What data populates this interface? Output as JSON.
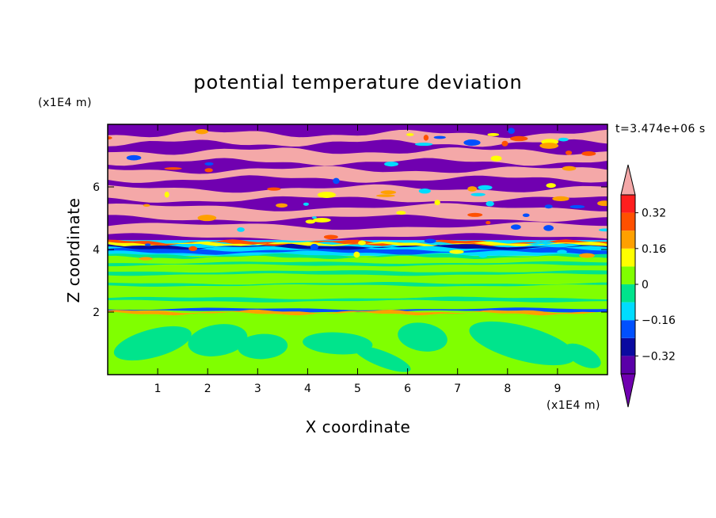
{
  "chart_data": {
    "type": "heatmap",
    "title": "potential temperature deviation",
    "xlabel": "X coordinate",
    "ylabel": "Z coordinate",
    "x_unit": "(x1E4 m)",
    "y_unit": "(x1E4 m)",
    "time_label": "t=3.474e+06 s",
    "xlim": [
      0,
      10
    ],
    "ylim": [
      0,
      8
    ],
    "x_ticks": [
      1,
      2,
      3,
      4,
      5,
      6,
      7,
      8,
      9
    ],
    "y_ticks": [
      2,
      4,
      6
    ],
    "x_tick_labels": [
      "1",
      "2",
      "3",
      "4",
      "5",
      "6",
      "7",
      "8",
      "9"
    ],
    "y_tick_labels": [
      "2",
      "4",
      "6"
    ],
    "colorbar": {
      "levels": [
        -0.4,
        -0.32,
        -0.24,
        -0.16,
        -0.08,
        0,
        0.08,
        0.16,
        0.24,
        0.32,
        0.4
      ],
      "colors": [
        "#5a00a8",
        "#0a0aa0",
        "#0050ff",
        "#00dcff",
        "#00e48c",
        "#80ff00",
        "#ffff00",
        "#ffa000",
        "#ff5000",
        "#ff1e1e"
      ],
      "under_color": "#7000b0",
      "over_color": "#f4a8a8",
      "tick_values": [
        0.32,
        0.16,
        0,
        -0.16,
        -0.32
      ],
      "tick_labels": [
        "0.32",
        "0.16",
        "0",
        "−0.16",
        "−0.32"
      ]
    },
    "regions": [
      {
        "z_range": [
          0,
          2
        ],
        "description_value": "0 to 0.08",
        "dominant_colors": [
          "#80ff00",
          "#00e48c"
        ]
      },
      {
        "z_range": [
          2,
          3.8
        ],
        "description_value": "-0.08 to 0.08",
        "dominant_colors": [
          "#80ff00",
          "#00e48c"
        ]
      },
      {
        "z_range": [
          3.8,
          4.3
        ],
        "description_value": "-0.24 to 0.24",
        "dominant_colors": [
          "#00dcff",
          "#0050ff",
          "#ff5000"
        ]
      },
      {
        "z_range": [
          4.3,
          8
        ],
        "description_value": "< -0.4 and > 0.4 alternating layers",
        "dominant_colors": [
          "#7000b0",
          "#f4a8a8"
        ]
      }
    ]
  }
}
